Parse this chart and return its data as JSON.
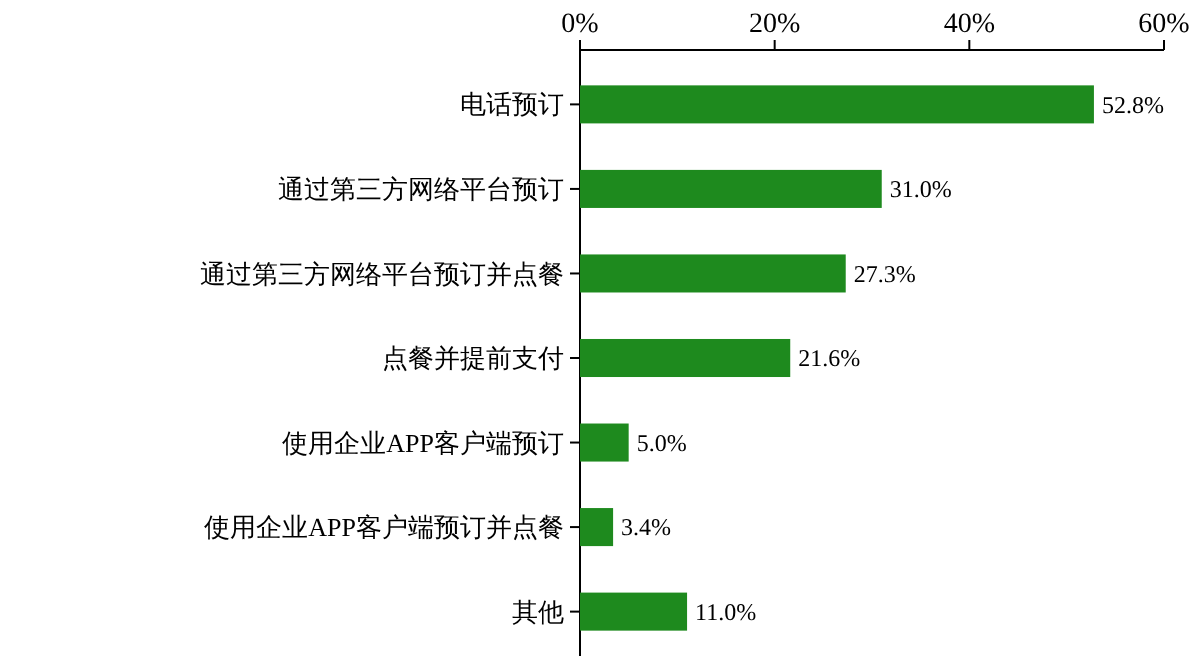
{
  "chart_data": {
    "type": "bar",
    "orientation": "horizontal",
    "categories": [
      "电话预订",
      "通过第三方网络平台预订",
      "通过第三方网络平台预订并点餐",
      "点餐并提前支付",
      "使用企业APP客户端预订",
      "使用企业APP客户端预订并点餐",
      "其他"
    ],
    "values": [
      52.8,
      31.0,
      27.3,
      21.6,
      5.0,
      3.4,
      11.0
    ],
    "value_labels": [
      "52.8%",
      "31.0%",
      "27.3%",
      "21.6%",
      "5.0%",
      "3.4%",
      "11.0%"
    ],
    "color": "#1e8a1e",
    "xlim": [
      0,
      60
    ],
    "xticks": [
      {
        "value": 0,
        "label": "0%"
      },
      {
        "value": 20,
        "label": "20%"
      },
      {
        "value": 40,
        "label": "40%"
      },
      {
        "value": 60,
        "label": "60%"
      }
    ],
    "grid": false
  }
}
